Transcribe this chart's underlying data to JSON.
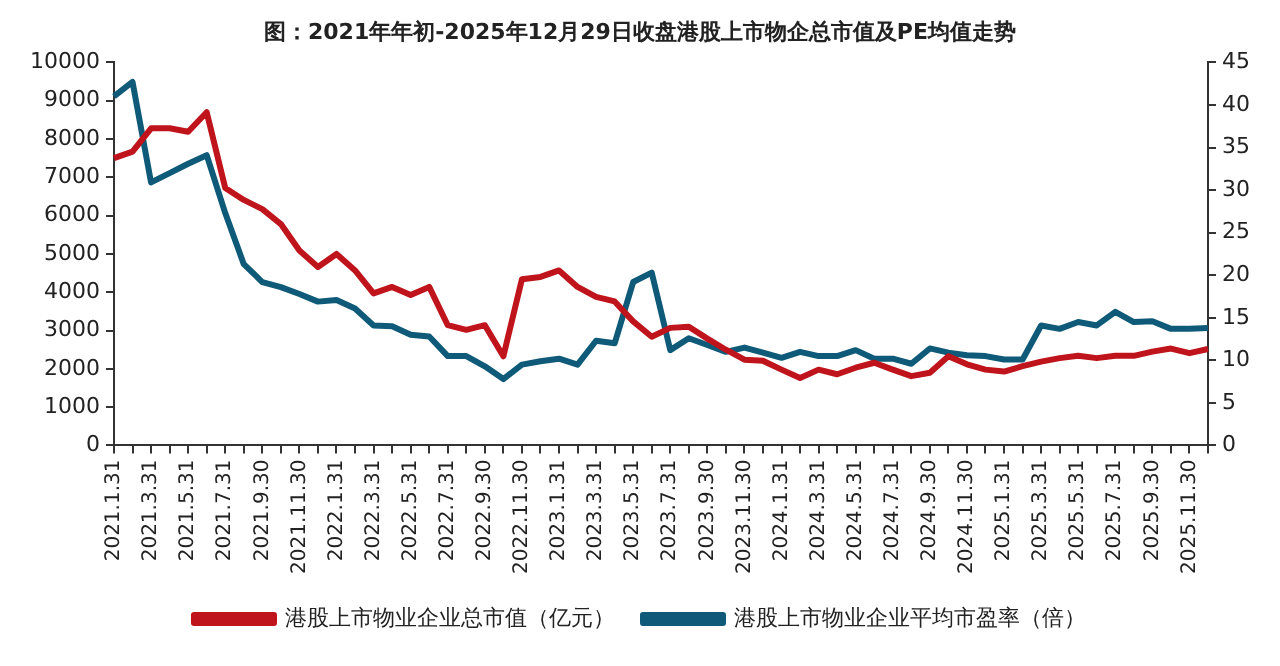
{
  "chart_data": {
    "type": "line",
    "title": "图：2021年年初-2025年12月29日收盘港股上市物企总市值及PE均值走势",
    "categories": [
      "2021.1.31",
      null,
      "2021.3.31",
      null,
      "2021.5.31",
      null,
      "2021.7.31",
      null,
      "2021.9.30",
      null,
      "2021.11.30",
      null,
      "2022.1.31",
      null,
      "2022.3.31",
      null,
      "2022.5.31",
      null,
      "2022.7.31",
      null,
      "2022.9.30",
      null,
      "2022.11.30",
      null,
      "2023.1.31",
      null,
      "2023.3.31",
      null,
      "2023.5.31",
      null,
      "2023.7.31",
      null,
      "2023.9.30",
      null,
      "2023.11.30",
      null,
      "2024.1.31",
      null,
      "2024.3.31",
      null,
      "2024.5.31",
      null,
      "2024.7.31",
      null,
      "2024.9.30",
      null,
      "2024.11.30",
      null,
      "2025.1.31",
      null,
      "2025.3.31",
      null,
      "2025.5.31",
      null,
      "2025.7.31",
      null,
      "2025.9.30",
      null,
      "2025.11.30",
      null
    ],
    "series": [
      {
        "name": "港股上市物业企业总市值（亿元）",
        "color": "#c0141c",
        "values": [
          7500,
          7670,
          8280,
          8280,
          8190,
          8700,
          6720,
          6410,
          6170,
          5780,
          5090,
          4660,
          5000,
          4570,
          3970,
          4140,
          3930,
          4140,
          3140,
          3020,
          3140,
          2330,
          4340,
          4400,
          4570,
          4140,
          3880,
          3760,
          3240,
          2840,
          3070,
          3100,
          2790,
          2500,
          2240,
          2210,
          1980,
          1760,
          1980,
          1860,
          2030,
          2160,
          1980,
          1810,
          1900,
          2330,
          2120,
          1980,
          1930,
          2070,
          2190,
          2280,
          2340,
          2280,
          2340,
          2340,
          2450,
          2530,
          2410,
          2520
        ]
      },
      {
        "name": "港股上市物业企业平均市盈率（倍）",
        "color": "#0e5a78",
        "axis": "y2",
        "values": [
          41.0,
          42.7,
          30.9,
          32.0,
          33.1,
          34.1,
          27.3,
          21.3,
          19.2,
          18.6,
          17.8,
          16.9,
          17.1,
          16.1,
          14.1,
          14.0,
          13.0,
          12.8,
          10.5,
          10.5,
          9.3,
          7.8,
          9.5,
          9.9,
          10.2,
          9.5,
          12.3,
          12.0,
          19.2,
          20.3,
          11.2,
          12.6,
          11.8,
          11.0,
          11.5,
          10.9,
          10.3,
          11.0,
          10.5,
          10.5,
          11.2,
          10.2,
          10.2,
          9.6,
          11.4,
          10.9,
          10.6,
          10.5,
          10.1,
          10.1,
          14.1,
          13.7,
          14.5,
          14.1,
          15.7,
          14.5,
          14.6,
          13.7,
          13.7,
          13.8
        ]
      }
    ],
    "ylim": [
      0,
      10000
    ],
    "yticks": [
      0,
      1000,
      2000,
      3000,
      4000,
      5000,
      6000,
      7000,
      8000,
      9000,
      10000
    ],
    "y2lim": [
      0,
      45
    ],
    "y2ticks": [
      0,
      5,
      10,
      15,
      20,
      25,
      30,
      35,
      40,
      45
    ],
    "grid": false,
    "legend": "bottom",
    "marker": "none",
    "line_style": "solid"
  }
}
